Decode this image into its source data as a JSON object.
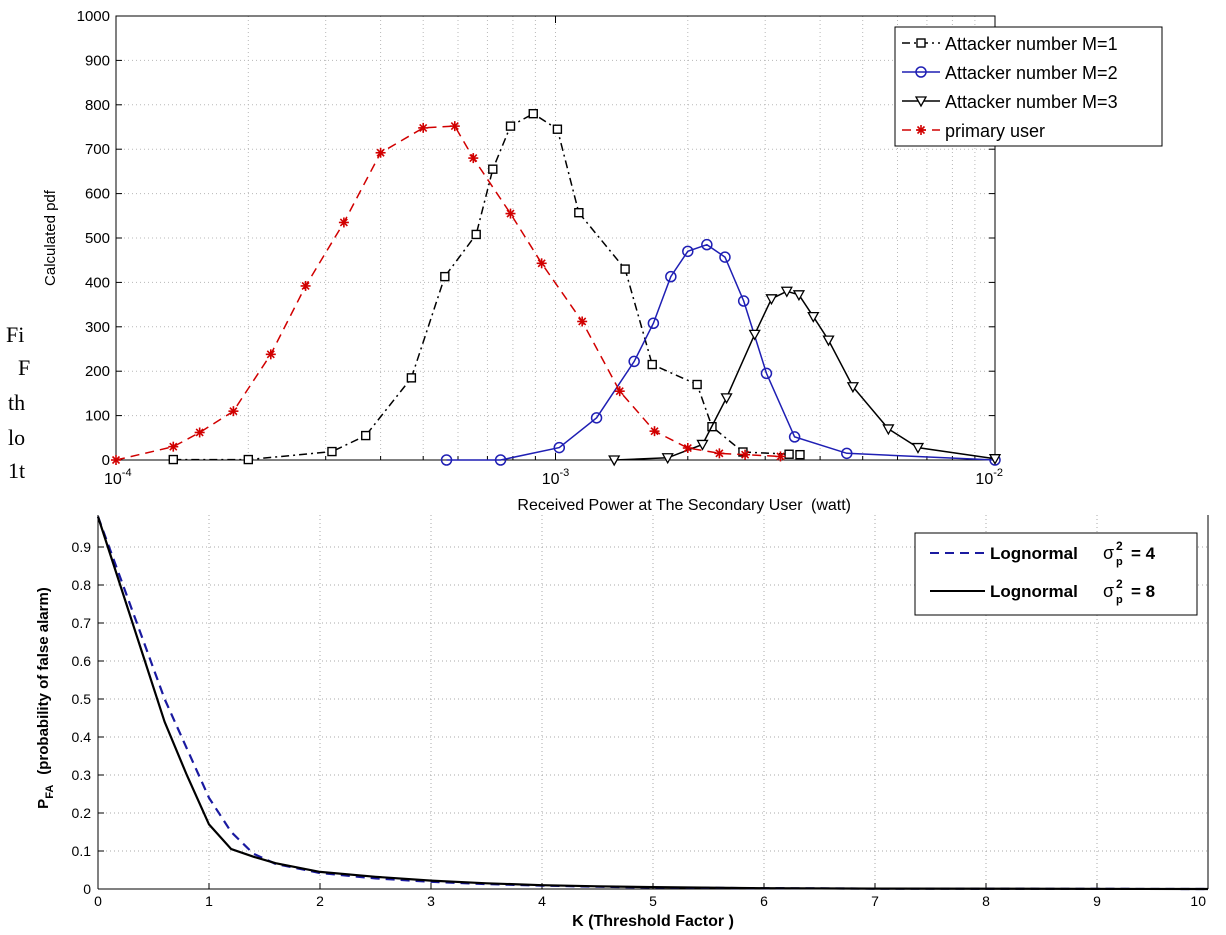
{
  "page": {
    "text_fragments": [
      "Fi",
      "F",
      "th",
      "lo",
      "1t"
    ]
  },
  "chart_data": [
    {
      "type": "line",
      "xscale": "log",
      "xlabel": "Received Power at The Secondary User",
      "xlabel_unit": "(watt)",
      "ylabel": "Calculated pdf",
      "xlim": [
        0.0001,
        0.01
      ],
      "ylim": [
        0,
        1000
      ],
      "yticks": [
        "0",
        "100",
        "200",
        "300",
        "400",
        "500",
        "600",
        "700",
        "800",
        "900",
        "1000"
      ],
      "xticks": [
        {
          "base": "10",
          "exp": "-4",
          "value": 0.0001
        },
        {
          "base": "10",
          "exp": "-3",
          "value": 0.001
        },
        {
          "base": "10",
          "exp": "-2",
          "value": 0.01
        }
      ],
      "grid": true,
      "legend": "top-right",
      "series": [
        {
          "name": "Attacker number M=1",
          "color": "#000000",
          "line": "dashdot",
          "marker": "square",
          "x": [
            0.000135,
            0.0002,
            0.00031,
            0.00037,
            0.00047,
            0.00056,
            0.00066,
            0.00072,
            0.00079,
            0.00089,
            0.00101,
            0.00113,
            0.00144,
            0.00166,
            0.0021,
            0.00227,
            0.00267,
            0.0034,
            0.0036
          ],
          "y": [
            1,
            1,
            19,
            55,
            185,
            413,
            508,
            655,
            752,
            780,
            745,
            557,
            430,
            215,
            170,
            75,
            18,
            13,
            12
          ]
        },
        {
          "name": "Attacker number M=2",
          "color": "#1f1fb4",
          "line": "solid",
          "marker": "circle",
          "x": [
            0.000565,
            0.00075,
            0.00102,
            0.00124,
            0.00151,
            0.00167,
            0.00183,
            0.002,
            0.00221,
            0.00243,
            0.00268,
            0.00302,
            0.0035,
            0.0046,
            0.01
          ],
          "y": [
            0,
            0,
            28,
            95,
            222,
            308,
            413,
            470,
            485,
            457,
            358,
            195,
            52,
            15,
            0
          ]
        },
        {
          "name": "Attacker number M=3",
          "color": "#000000",
          "line": "solid",
          "marker": "triangle-down",
          "x": [
            0.00136,
            0.0018,
            0.00216,
            0.00245,
            0.00284,
            0.0031,
            0.00336,
            0.00358,
            0.00386,
            0.00418,
            0.00475,
            0.00572,
            0.00668,
            0.01
          ],
          "y": [
            0,
            5,
            35,
            140,
            283,
            363,
            380,
            372,
            323,
            270,
            165,
            70,
            28,
            3
          ]
        },
        {
          "name": "primary user",
          "color": "#d10000",
          "line": "dashed",
          "marker": "star",
          "x": [
            0.0001,
            0.000135,
            0.000155,
            0.000185,
            0.000225,
            0.00027,
            0.00033,
            0.0004,
            0.0005,
            0.00059,
            0.00065,
            0.00079,
            0.00093,
            0.00115,
            0.0014,
            0.00168,
            0.002,
            0.00236,
            0.0027,
            0.00325
          ],
          "y": [
            0,
            30,
            62,
            110,
            238,
            392,
            535,
            692,
            748,
            752,
            680,
            555,
            443,
            312,
            155,
            65,
            27,
            15,
            12,
            8
          ]
        }
      ]
    },
    {
      "type": "line",
      "xlabel": "K (Threshold Factor )",
      "ylabel_main": "P",
      "ylabel_sub": "FA",
      "ylabel_rest": "(probability of false alarm)",
      "xlim": [
        0,
        10
      ],
      "ylim": [
        0,
        1
      ],
      "xticks": [
        "0",
        "1",
        "2",
        "3",
        "4",
        "5",
        "6",
        "7",
        "8",
        "9",
        "10"
      ],
      "yticks": [
        "0",
        "0.1",
        "0.2",
        "0.3",
        "0.4",
        "0.5",
        "0.6",
        "0.7",
        "0.8",
        "0.9"
      ],
      "grid": true,
      "legend": "top-right",
      "legend_symbol": "σ",
      "legend_sub": "p",
      "legend_sup": "2",
      "series": [
        {
          "name": "Lognormal",
          "param_value": "= 4",
          "color": "#1a1aa0",
          "line": "dashed",
          "x": [
            0,
            0.2,
            0.4,
            0.6,
            0.8,
            1.0,
            1.2,
            1.4,
            1.6,
            2.0,
            2.5,
            3.0,
            3.5,
            4.0,
            4.5,
            5.0,
            6.0,
            7.0,
            10.0
          ],
          "y": [
            0.98,
            0.82,
            0.66,
            0.5,
            0.37,
            0.24,
            0.15,
            0.093,
            0.066,
            0.042,
            0.028,
            0.019,
            0.013,
            0.009,
            0.006,
            0.004,
            0.002,
            0.001,
            0
          ]
        },
        {
          "name": "Lognormal",
          "param_value": "= 8",
          "color": "#000000",
          "line": "solid",
          "x": [
            0,
            0.2,
            0.4,
            0.6,
            0.8,
            1.0,
            1.2,
            1.4,
            1.6,
            2.0,
            2.5,
            3.0,
            3.5,
            4.0,
            4.5,
            5.0,
            6.0,
            7.0,
            10.0
          ],
          "y": [
            0.98,
            0.8,
            0.62,
            0.44,
            0.3,
            0.17,
            0.105,
            0.085,
            0.068,
            0.045,
            0.032,
            0.022,
            0.015,
            0.01,
            0.007,
            0.005,
            0.002,
            0.001,
            0
          ]
        }
      ]
    }
  ]
}
